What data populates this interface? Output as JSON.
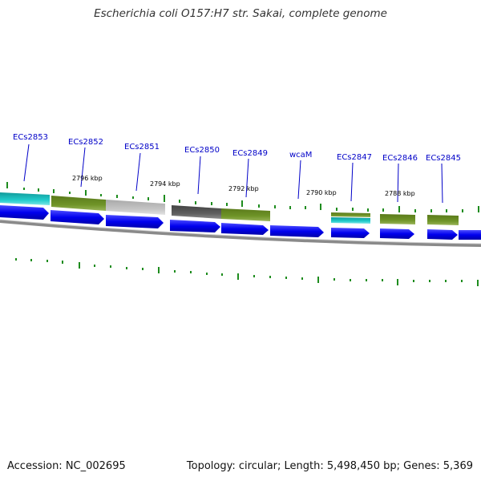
{
  "title": "Escherichia coli O157:H7 str. Sakai, complete genome",
  "footer": {
    "accession": "Accession: NC_002695",
    "summary": "Topology: circular; Length: 5,498,450 bp; Genes: 5,369"
  },
  "gene_labels": [
    "ECs2853",
    "ECs2852",
    "ECs2851",
    "ECs2850",
    "ECs2849",
    "wcaM",
    "ECs2847",
    "ECs2846",
    "ECs2845"
  ],
  "kbp_labels": [
    "2796 kbp",
    "2794 kbp",
    "2792 kbp",
    "2790 kbp",
    "2788 kbp"
  ],
  "colors": {
    "gene_label": "#0000c8",
    "cds_arrow": "#0000ee",
    "backbone": "#8a8a8a",
    "tick": "#1e8c1e",
    "cog_cyan": "#1fc8c8",
    "cog_olive": "#6b8e23",
    "cog_gray": "#bdbdbd",
    "cog_darkgray": "#5a5a5a"
  }
}
